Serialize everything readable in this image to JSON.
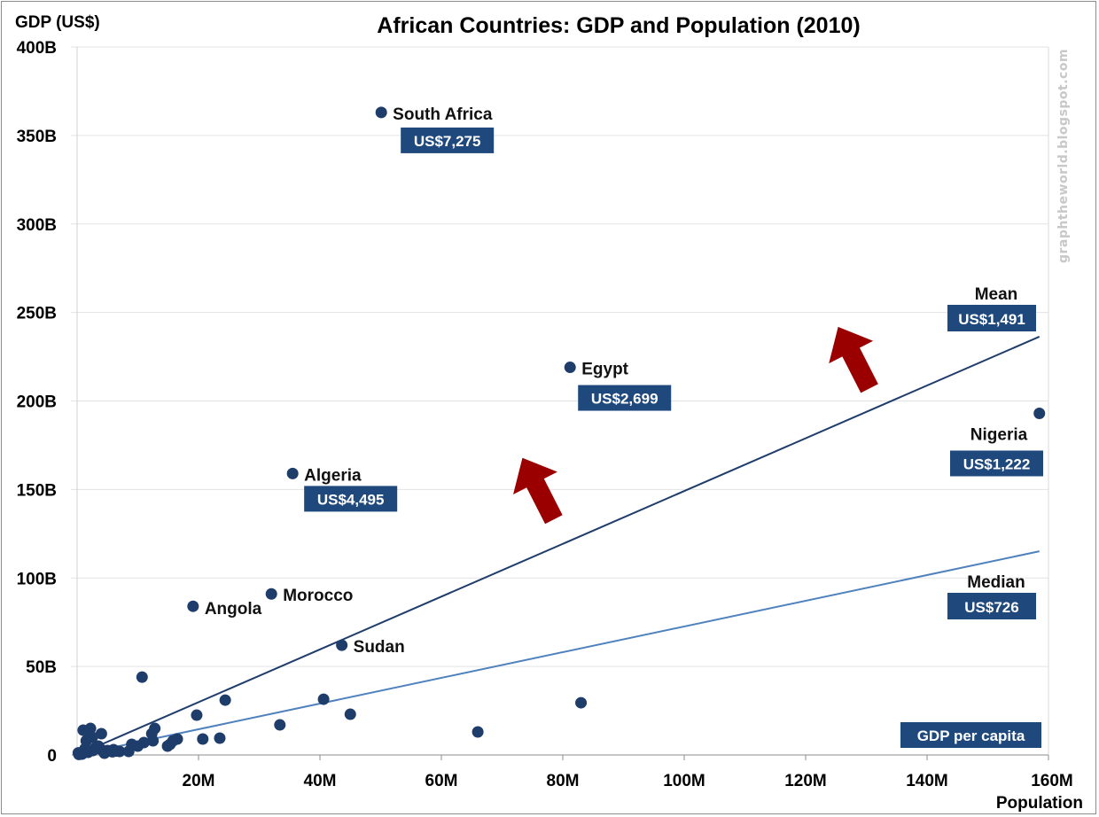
{
  "chart_data": {
    "type": "scatter",
    "title": "African Countries: GDP and Population (2010)",
    "ylabel": "GDP (US$)",
    "xlabel": "Population",
    "xlim": [
      0,
      160
    ],
    "ylim": [
      0,
      400
    ],
    "x_units": "millions",
    "y_units": "billions US$",
    "grid": "horizontal",
    "x_ticks": [
      {
        "value": 20,
        "label": "20M"
      },
      {
        "value": 40,
        "label": "40M"
      },
      {
        "value": 60,
        "label": "60M"
      },
      {
        "value": 80,
        "label": "80M"
      },
      {
        "value": 100,
        "label": "100M"
      },
      {
        "value": 120,
        "label": "120M"
      },
      {
        "value": 140,
        "label": "140M"
      },
      {
        "value": 160,
        "label": "160M"
      }
    ],
    "y_ticks": [
      {
        "value": 0,
        "label": "0"
      },
      {
        "value": 50,
        "label": "50B"
      },
      {
        "value": 100,
        "label": "100B"
      },
      {
        "value": 150,
        "label": "150B"
      },
      {
        "value": 200,
        "label": "200B"
      },
      {
        "value": 250,
        "label": "250B"
      },
      {
        "value": 300,
        "label": "300B"
      },
      {
        "value": 350,
        "label": "350B"
      },
      {
        "value": 400,
        "label": "400B"
      }
    ],
    "series_color": "#1f3d6b",
    "labeled_points": [
      {
        "name": "South Africa",
        "x": 50.1,
        "y": 363,
        "gdp_per_capita": "US$7,275",
        "label_pos": "right",
        "box": true
      },
      {
        "name": "Egypt",
        "x": 81.2,
        "y": 219,
        "gdp_per_capita": "US$2,699",
        "label_pos": "right",
        "box": true
      },
      {
        "name": "Nigeria",
        "x": 158.5,
        "y": 193,
        "gdp_per_capita": "US$1,222",
        "label_pos": "below-left",
        "box": true
      },
      {
        "name": "Algeria",
        "x": 35.5,
        "y": 159,
        "gdp_per_capita": "US$4,495",
        "label_pos": "right",
        "box": true
      },
      {
        "name": "Morocco",
        "x": 32.0,
        "y": 91,
        "label_pos": "right",
        "box": false
      },
      {
        "name": "Angola",
        "x": 19.1,
        "y": 84,
        "label_pos": "right-low",
        "box": false
      },
      {
        "name": "Sudan",
        "x": 43.6,
        "y": 62,
        "label_pos": "right",
        "box": false
      }
    ],
    "points": [
      {
        "x": 10.7,
        "y": 44
      },
      {
        "x": 24.4,
        "y": 31
      },
      {
        "x": 19.7,
        "y": 22.5
      },
      {
        "x": 40.6,
        "y": 31.5
      },
      {
        "x": 45.0,
        "y": 23
      },
      {
        "x": 33.4,
        "y": 17
      },
      {
        "x": 83.0,
        "y": 29.5
      },
      {
        "x": 66.0,
        "y": 13
      },
      {
        "x": 20.7,
        "y": 9
      },
      {
        "x": 23.5,
        "y": 9.5
      },
      {
        "x": 12.8,
        "y": 15
      },
      {
        "x": 12.3,
        "y": 12
      },
      {
        "x": 12.5,
        "y": 8
      },
      {
        "x": 11.0,
        "y": 7
      },
      {
        "x": 10.0,
        "y": 5
      },
      {
        "x": 9.0,
        "y": 6
      },
      {
        "x": 8.5,
        "y": 2
      },
      {
        "x": 15.3,
        "y": 6
      },
      {
        "x": 15.8,
        "y": 8
      },
      {
        "x": 16.5,
        "y": 9
      },
      {
        "x": 14.9,
        "y": 5
      },
      {
        "x": 4.0,
        "y": 12
      },
      {
        "x": 2.0,
        "y": 14
      },
      {
        "x": 2.5,
        "y": 10
      },
      {
        "x": 1.0,
        "y": 14
      },
      {
        "x": 2.2,
        "y": 15
      },
      {
        "x": 1.5,
        "y": 8
      },
      {
        "x": 3.0,
        "y": 4
      },
      {
        "x": 4.0,
        "y": 3
      },
      {
        "x": 5.0,
        "y": 2.5
      },
      {
        "x": 6.0,
        "y": 3
      },
      {
        "x": 7.0,
        "y": 2
      },
      {
        "x": 4.5,
        "y": 1
      },
      {
        "x": 1.0,
        "y": 2
      },
      {
        "x": 0.5,
        "y": 1
      },
      {
        "x": 0.8,
        "y": 0.5
      },
      {
        "x": 1.8,
        "y": 1.5
      },
      {
        "x": 2.6,
        "y": 2.5
      },
      {
        "x": 0.3,
        "y": 0.3
      },
      {
        "x": 3.5,
        "y": 5
      },
      {
        "x": 5.8,
        "y": 1.8
      },
      {
        "x": 6.4,
        "y": 2.2
      },
      {
        "x": 1.3,
        "y": 3.5
      },
      {
        "x": 0.2,
        "y": 1.2
      }
    ],
    "reference_lines": [
      {
        "name": "Mean",
        "label": "Mean",
        "value_label": "US$1,491",
        "slope_usd_per_capita": 1491,
        "color": "#1f3d6b",
        "x_end": 158.5
      },
      {
        "name": "Median",
        "label": "Median",
        "value_label": "US$726",
        "slope_usd_per_capita": 726,
        "color": "#4f81bd",
        "x_end": 158.5
      }
    ],
    "annotations": {
      "legend_box": "GDP per capita",
      "arrows": [
        {
          "name": "arrow-1",
          "at": {
            "x": 76,
            "y": 150
          },
          "direction": "up-left",
          "color": "#9b0000"
        },
        {
          "name": "arrow-2",
          "at": {
            "x": 128,
            "y": 224
          },
          "direction": "up-left",
          "color": "#9b0000"
        }
      ],
      "watermark": "graphtheworld.blogspot.com"
    }
  }
}
